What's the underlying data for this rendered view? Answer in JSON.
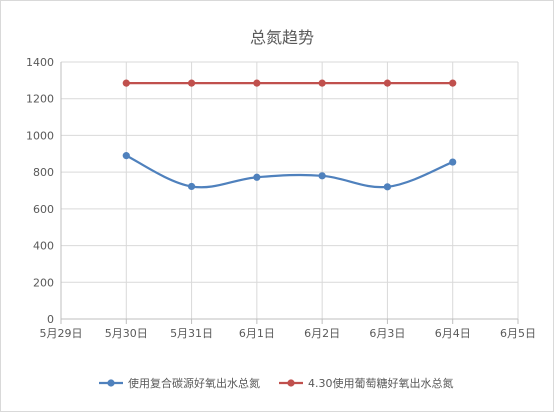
{
  "chart_data": {
    "type": "line",
    "title": "总氮趋势",
    "xlabel": "",
    "ylabel": "",
    "categories": [
      "5月29日",
      "5月30日",
      "5月31日",
      "6月1日",
      "6月2日",
      "6月3日",
      "6月4日",
      "6月5日"
    ],
    "ylim": [
      0,
      1400
    ],
    "yticks": [
      0,
      200,
      400,
      600,
      800,
      1000,
      1200,
      1400
    ],
    "grid": true,
    "legend_position": "bottom",
    "series": [
      {
        "name": "使用复合碳源好氧出水总氮",
        "color": "#4f81bd",
        "smooth": true,
        "points": [
          {
            "x": "5月30日",
            "y": 890
          },
          {
            "x": "5月31日",
            "y": 722
          },
          {
            "x": "6月1日",
            "y": 772
          },
          {
            "x": "6月2日",
            "y": 780
          },
          {
            "x": "6月3日",
            "y": 720
          },
          {
            "x": "6月4日",
            "y": 855
          }
        ]
      },
      {
        "name": "4.30使用葡萄糖好氧出水总氮",
        "color": "#c0504d",
        "smooth": false,
        "points": [
          {
            "x": "5月30日",
            "y": 1285
          },
          {
            "x": "5月31日",
            "y": 1285
          },
          {
            "x": "6月1日",
            "y": 1285
          },
          {
            "x": "6月2日",
            "y": 1285
          },
          {
            "x": "6月3日",
            "y": 1285
          },
          {
            "x": "6月4日",
            "y": 1285
          }
        ]
      }
    ]
  }
}
